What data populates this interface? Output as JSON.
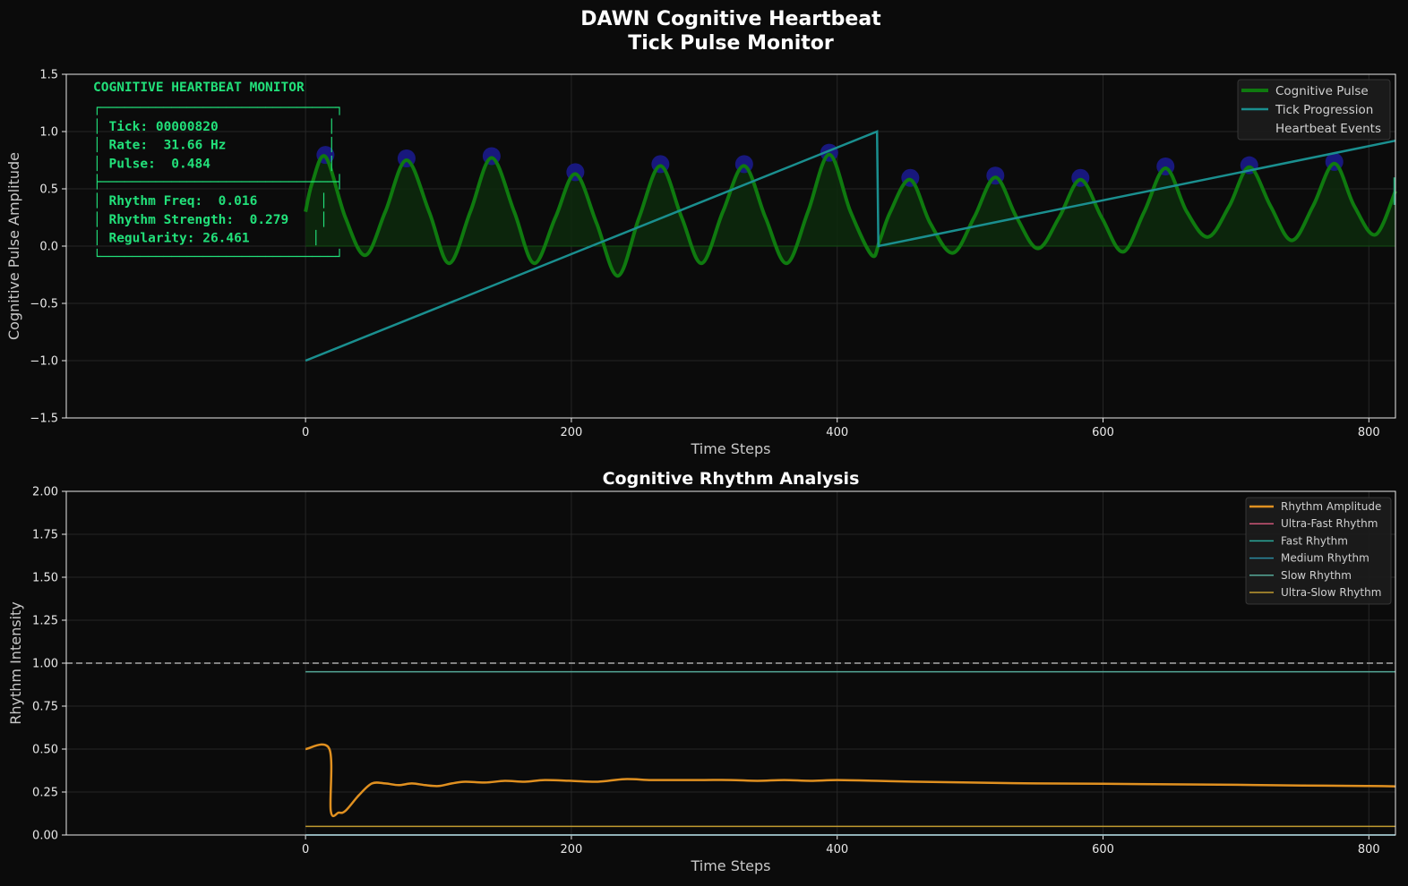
{
  "figure": {
    "title_line1": "DAWN Cognitive Heartbeat",
    "title_line2": "Tick Pulse Monitor"
  },
  "colors": {
    "background": "#0b0b0b",
    "pulse": "#0f7a0f",
    "pulse_fill": "#0d2a0d",
    "tick_progression": "#1a8f8f",
    "events": "#1a1a8a",
    "monitor_text": "#22e07a",
    "rhythm_amplitude": "#e09020",
    "ultra_fast": "#cc5577",
    "fast": "#2aa89a",
    "medium": "#2a8aa0",
    "slow": "#55a898",
    "ultra_slow": "#c09a30",
    "reference_line": "#aaaaaa"
  },
  "monitor": {
    "header": "COGNITIVE HEARTBEAT MONITOR",
    "lines": [
      "┌──────────────────────────────┐",
      "│ Tick: 00000820              │",
      "│ Rate:  31.66 Hz             │",
      "│ Pulse:  0.484               │",
      "├──────────────────────────────┤",
      "│ Rhythm Freq:  0.016        │",
      "│ Rhythm Strength:  0.279    │",
      "│ Regularity: 26.461        │",
      "└──────────────────────────────┘"
    ]
  },
  "chart_data": [
    {
      "type": "line",
      "xlabel": "Time Steps",
      "ylabel": "Cognitive Pulse Amplitude",
      "xlim": [
        -180,
        820
      ],
      "ylim": [
        -1.5,
        1.5
      ],
      "x_ticks": [
        0,
        200,
        400,
        600,
        800
      ],
      "x_tick_labels": [
        "0",
        "200",
        "400",
        "600",
        "800"
      ],
      "y_ticks": [
        -1.5,
        -1.0,
        -0.5,
        0.0,
        0.5,
        1.0,
        1.5
      ],
      "y_tick_labels": [
        "−1.5",
        "−1.0",
        "−0.5",
        "0.0",
        "0.5",
        "1.0",
        "1.5"
      ],
      "grid": true,
      "legend_position": "top-right",
      "series": [
        {
          "name": "Cognitive Pulse",
          "kind": "sinusoid",
          "x": [
            0,
            5,
            15,
            30,
            45,
            60,
            76,
            93,
            108,
            124,
            140,
            157,
            172,
            188,
            203,
            219,
            235,
            251,
            267,
            283,
            298,
            314,
            330,
            346,
            362,
            378,
            394,
            410,
            426,
            432,
            440,
            455,
            470,
            487,
            503,
            519,
            535,
            551,
            567,
            583,
            599,
            615,
            631,
            647,
            663,
            679,
            695,
            710,
            726,
            742,
            758,
            774,
            789,
            805,
            820
          ],
          "y": [
            0.3,
            0.55,
            0.78,
            0.25,
            -0.08,
            0.3,
            0.75,
            0.3,
            -0.15,
            0.3,
            0.77,
            0.3,
            -0.15,
            0.25,
            0.63,
            0.2,
            -0.26,
            0.25,
            0.7,
            0.25,
            -0.15,
            0.3,
            0.7,
            0.25,
            -0.15,
            0.3,
            0.8,
            0.3,
            -0.08,
            0.05,
            0.3,
            0.58,
            0.2,
            -0.06,
            0.25,
            0.6,
            0.25,
            -0.02,
            0.25,
            0.58,
            0.25,
            -0.05,
            0.3,
            0.68,
            0.3,
            0.08,
            0.35,
            0.69,
            0.35,
            0.05,
            0.35,
            0.72,
            0.35,
            0.1,
            0.48
          ]
        },
        {
          "name": "Tick Progression",
          "x": [
            0,
            430,
            431,
            820
          ],
          "y": [
            -1.0,
            1.0,
            0.0,
            0.92
          ]
        },
        {
          "name": "Heartbeat Events",
          "kind": "scatter",
          "x": [
            15,
            76,
            140,
            203,
            267,
            330,
            394,
            455,
            519,
            583,
            647,
            710,
            774
          ],
          "y": [
            0.78,
            0.75,
            0.77,
            0.63,
            0.7,
            0.7,
            0.8,
            0.58,
            0.6,
            0.58,
            0.68,
            0.69,
            0.72
          ]
        }
      ]
    },
    {
      "type": "line",
      "title": "Cognitive Rhythm Analysis",
      "xlabel": "Time Steps",
      "ylabel": "Rhythm Intensity",
      "xlim": [
        -180,
        820
      ],
      "ylim": [
        0.0,
        2.0
      ],
      "x_ticks": [
        0,
        200,
        400,
        600,
        800
      ],
      "x_tick_labels": [
        "0",
        "200",
        "400",
        "600",
        "800"
      ],
      "y_ticks": [
        0.0,
        0.25,
        0.5,
        0.75,
        1.0,
        1.25,
        1.5,
        1.75,
        2.0
      ],
      "y_tick_labels": [
        "0.00",
        "0.25",
        "0.50",
        "0.75",
        "1.00",
        "1.25",
        "1.50",
        "1.75",
        "2.00"
      ],
      "reference_line": 1.0,
      "grid": true,
      "legend_position": "top-right",
      "series": [
        {
          "name": "Rhythm Amplitude",
          "x": [
            0,
            18,
            19,
            25,
            30,
            40,
            50,
            60,
            70,
            80,
            90,
            100,
            110,
            120,
            135,
            150,
            165,
            180,
            200,
            220,
            240,
            260,
            280,
            300,
            320,
            340,
            360,
            380,
            400,
            430,
            460,
            500,
            550,
            600,
            650,
            700,
            750,
            800,
            820
          ],
          "y": [
            0.5,
            0.5,
            0.14,
            0.13,
            0.14,
            0.23,
            0.3,
            0.3,
            0.29,
            0.3,
            0.29,
            0.285,
            0.3,
            0.31,
            0.305,
            0.315,
            0.31,
            0.32,
            0.315,
            0.31,
            0.325,
            0.32,
            0.32,
            0.32,
            0.32,
            0.315,
            0.32,
            0.315,
            0.32,
            0.315,
            0.31,
            0.305,
            0.3,
            0.298,
            0.295,
            0.292,
            0.288,
            0.285,
            0.283
          ]
        },
        {
          "name": "Ultra-Fast Rhythm",
          "x": [
            0,
            820
          ],
          "y": [
            0.0,
            0.0
          ]
        },
        {
          "name": "Fast Rhythm",
          "x": [
            0,
            820
          ],
          "y": [
            0.0,
            0.0
          ]
        },
        {
          "name": "Medium Rhythm",
          "x": [
            0,
            820
          ],
          "y": [
            0.0,
            0.0
          ]
        },
        {
          "name": "Slow Rhythm",
          "x": [
            0,
            820
          ],
          "y": [
            0.95,
            0.95
          ]
        },
        {
          "name": "Ultra-Slow Rhythm",
          "x": [
            0,
            820
          ],
          "y": [
            0.05,
            0.05
          ]
        }
      ]
    }
  ]
}
